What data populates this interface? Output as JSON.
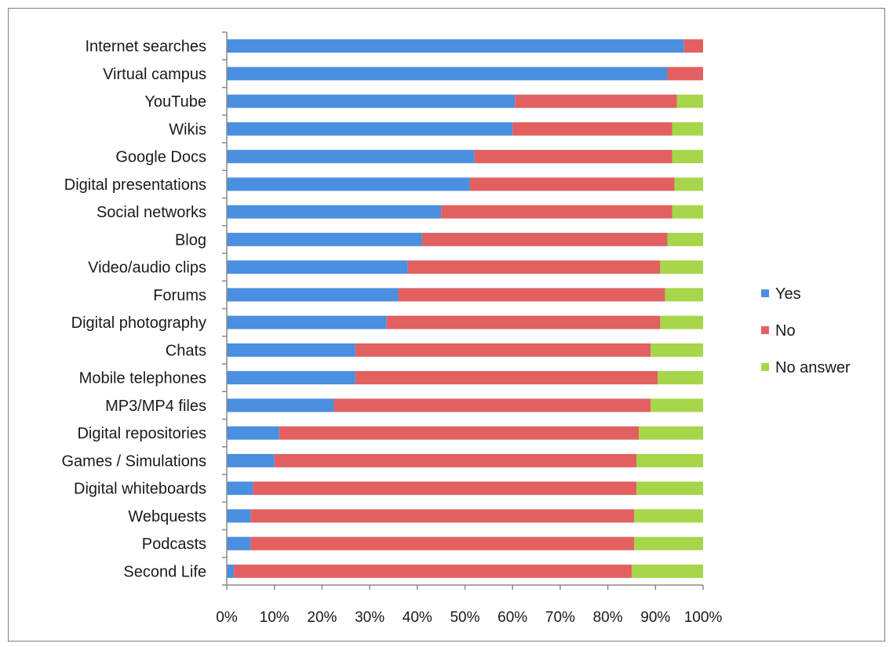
{
  "chart_data": {
    "type": "bar",
    "orientation": "horizontal",
    "stacked": true,
    "percent_stacked": true,
    "title": "",
    "xlabel": "",
    "ylabel": "",
    "xlim": [
      0,
      100
    ],
    "x_ticks": [
      "0%",
      "10%",
      "20%",
      "30%",
      "40%",
      "50%",
      "60%",
      "70%",
      "80%",
      "90%",
      "100%"
    ],
    "grid": false,
    "legend_position": "right",
    "categories": [
      "Internet searches",
      "Virtual campus",
      "YouTube",
      "Wikis",
      "Google Docs",
      "Digital presentations",
      "Social networks",
      "Blog",
      "Video/audio clips",
      "Forums",
      "Digital photography",
      "Chats",
      "Mobile telephones",
      "MP3/MP4 files",
      "Digital repositories",
      "Games / Simulations",
      "Digital whiteboards",
      "Webquests",
      "Podcasts",
      "Second Life"
    ],
    "series": [
      {
        "name": "Yes",
        "color": "#4a8fe0",
        "values": [
          96,
          92.5,
          60.5,
          60,
          52,
          51,
          45,
          41,
          38,
          36,
          33.5,
          27,
          27,
          22.5,
          11,
          10,
          5.5,
          5,
          5,
          1.5
        ]
      },
      {
        "name": "No",
        "color": "#e26060",
        "values": [
          4,
          7.5,
          34,
          33.5,
          41.5,
          43,
          48.5,
          51.5,
          53,
          56,
          57.5,
          62,
          63.5,
          66.5,
          75.5,
          76,
          80.5,
          80.5,
          80.5,
          83.5
        ]
      },
      {
        "name": "No answer",
        "color": "#a6d64a",
        "values": [
          0,
          0,
          5.5,
          6.5,
          6.5,
          6,
          6.5,
          7.5,
          9,
          8,
          9,
          11,
          9.5,
          11,
          13.5,
          14,
          14,
          14.5,
          14.5,
          15
        ]
      }
    ]
  }
}
